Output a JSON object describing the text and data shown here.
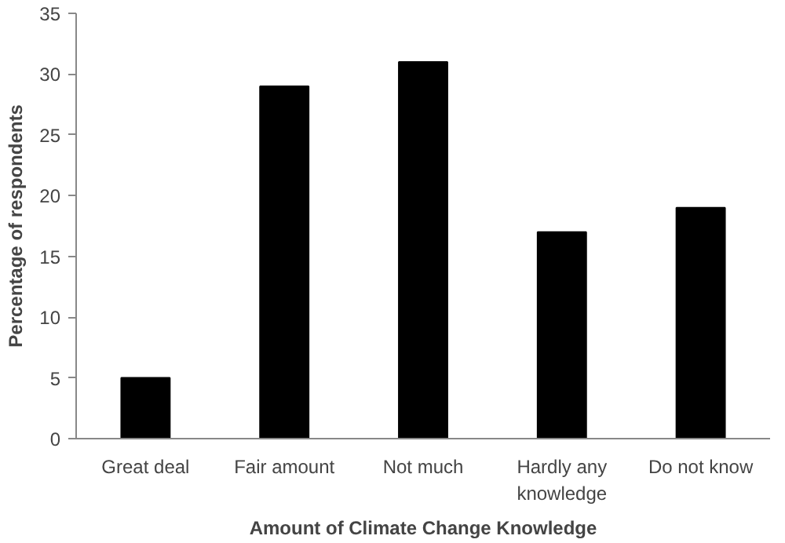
{
  "chart_data": {
    "type": "bar",
    "xlabel": "Amount of Climate Change Knowledge",
    "ylabel": "Percentage of respondents",
    "categories": [
      "Great deal",
      "Fair amount",
      "Not much",
      "Hardly any knowledge",
      "Do not know"
    ],
    "values": [
      5,
      29,
      31,
      17,
      19
    ],
    "color": "#000000",
    "ylim": [
      0,
      35
    ],
    "yticks": [
      0,
      5,
      10,
      15,
      20,
      25,
      30,
      35
    ],
    "grid": false
  }
}
